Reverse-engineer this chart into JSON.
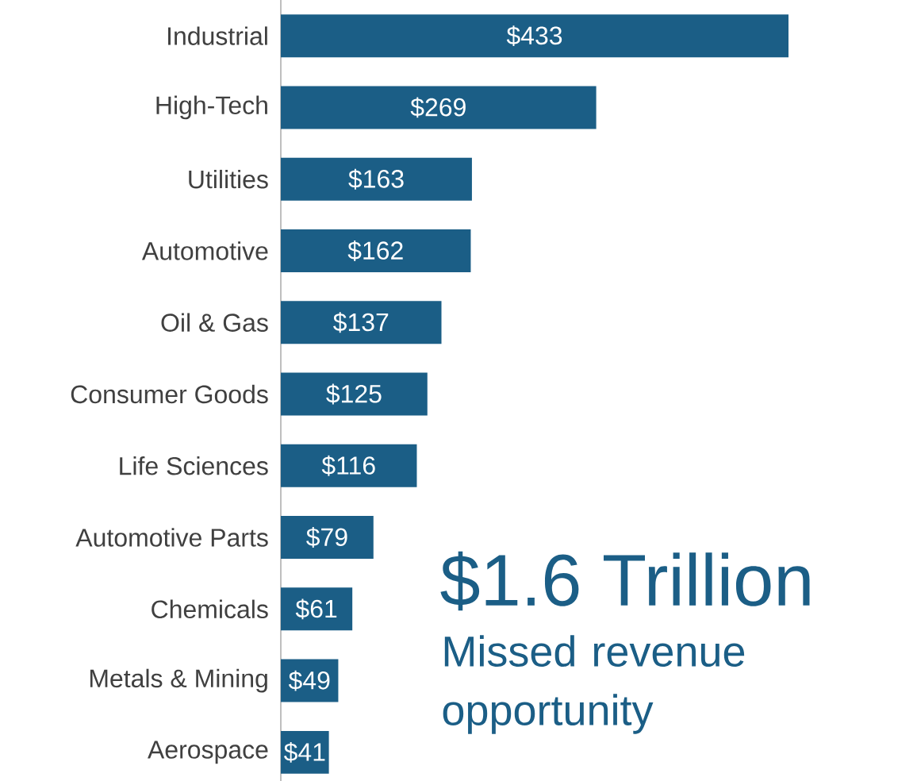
{
  "chart_data": {
    "type": "bar",
    "orientation": "horizontal",
    "color": "#1b5e86",
    "categories": [
      "Industrial",
      "High-Tech",
      "Utilities",
      "Automotive",
      "Oil & Gas",
      "Consumer Goods",
      "Life Sciences",
      "Automotive Parts",
      "Chemicals",
      "Metals & Mining",
      "Aerospace"
    ],
    "values": [
      433,
      269,
      163,
      162,
      137,
      125,
      116,
      79,
      61,
      49,
      41
    ],
    "value_labels": [
      "$433",
      "$269",
      "$163",
      "$162",
      "$137",
      "$125",
      "$116",
      "$79",
      "$61",
      "$49",
      "$41"
    ],
    "annotations": [
      "$1.6 Trillion",
      "Missed revenue opportunity"
    ]
  }
}
